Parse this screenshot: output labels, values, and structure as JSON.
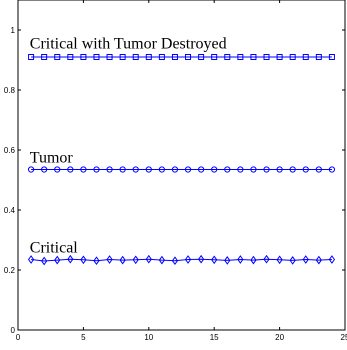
{
  "chart_data": {
    "type": "line",
    "title": "",
    "xlabel": "",
    "ylabel": "",
    "xlim": [
      0,
      25
    ],
    "ylim": [
      0,
      1.1
    ],
    "xticks": [
      0,
      5,
      10,
      15,
      20,
      25
    ],
    "yticks": [
      0,
      0.2,
      0.4,
      0.6,
      0.8,
      1
    ],
    "xtick_labels": [
      "0",
      "5",
      "10",
      "15",
      "20",
      "25"
    ],
    "ytick_labels": [
      "0",
      "0.2",
      "0.4",
      "0.6",
      "0.8",
      "1"
    ],
    "grid": false,
    "legend": "none",
    "color": "#0000ff",
    "x": [
      1,
      2,
      3,
      4,
      5,
      6,
      7,
      8,
      9,
      10,
      11,
      12,
      13,
      14,
      15,
      16,
      17,
      18,
      19,
      20,
      21,
      22,
      23,
      24
    ],
    "series": [
      {
        "name": "Critical with Tumor Destroyed",
        "marker": "square",
        "values": [
          0.91,
          0.91,
          0.91,
          0.91,
          0.91,
          0.91,
          0.91,
          0.91,
          0.91,
          0.91,
          0.91,
          0.91,
          0.91,
          0.91,
          0.91,
          0.91,
          0.91,
          0.91,
          0.91,
          0.91,
          0.91,
          0.91,
          0.91,
          0.91
        ]
      },
      {
        "name": "Tumor",
        "marker": "circle",
        "values": [
          0.535,
          0.535,
          0.535,
          0.535,
          0.535,
          0.535,
          0.535,
          0.535,
          0.535,
          0.535,
          0.535,
          0.535,
          0.535,
          0.535,
          0.535,
          0.535,
          0.535,
          0.535,
          0.535,
          0.535,
          0.535,
          0.535,
          0.535,
          0.535
        ]
      },
      {
        "name": "Critical",
        "marker": "diamond",
        "values": [
          0.235,
          0.23,
          0.233,
          0.236,
          0.234,
          0.231,
          0.235,
          0.233,
          0.234,
          0.236,
          0.233,
          0.231,
          0.235,
          0.236,
          0.234,
          0.232,
          0.235,
          0.233,
          0.236,
          0.234,
          0.232,
          0.235,
          0.233,
          0.235
        ]
      }
    ],
    "annotations": [
      {
        "text": "Critical with Tumor Destroyed",
        "x": 0.9,
        "y": 0.955
      },
      {
        "text": "Tumor",
        "x": 0.9,
        "y": 0.575
      },
      {
        "text": "Critical",
        "x": 0.9,
        "y": 0.275
      }
    ]
  }
}
